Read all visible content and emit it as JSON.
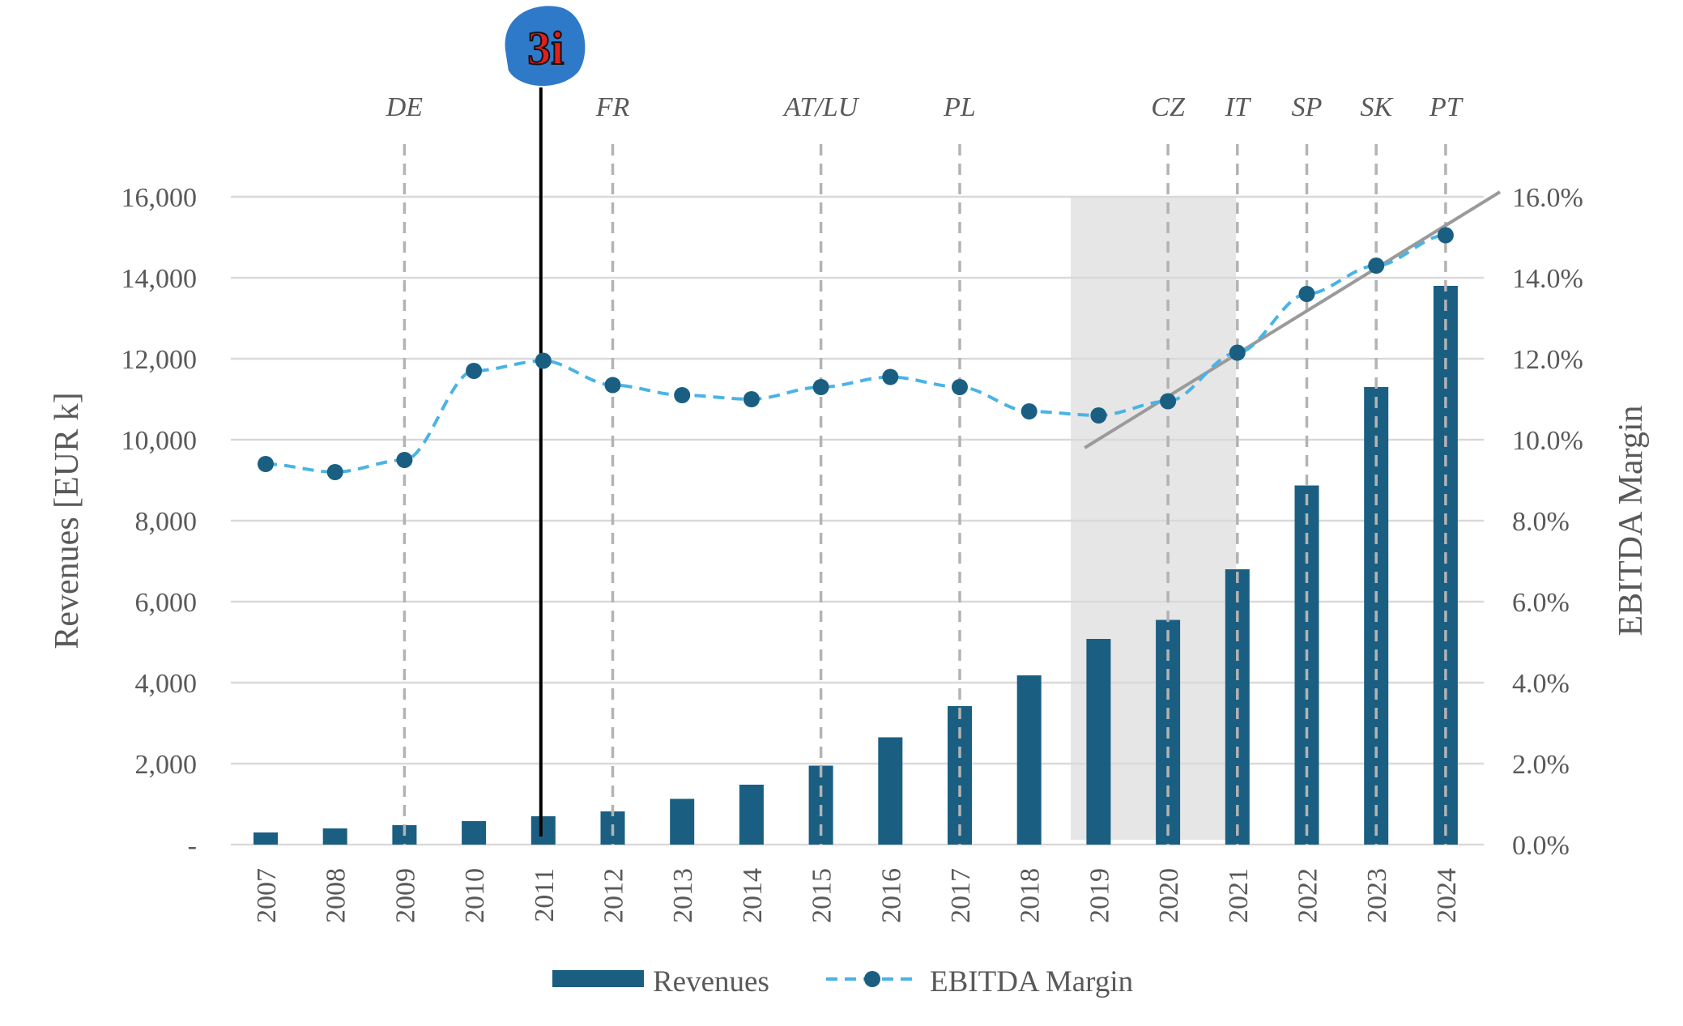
{
  "chart_data": {
    "type": "bar",
    "title": "",
    "categories": [
      "2007",
      "2008",
      "2009",
      "2010",
      "2011",
      "2012",
      "2013",
      "2014",
      "2015",
      "2016",
      "2017",
      "2018",
      "2019",
      "2020",
      "2021",
      "2022",
      "2023",
      "2024"
    ],
    "series": [
      {
        "name": "Revenues",
        "axis": "left",
        "kind": "bar",
        "values": [
          300,
          400,
          480,
          580,
          700,
          820,
          1130,
          1480,
          1950,
          2650,
          3420,
          4180,
          5080,
          5550,
          6800,
          8870,
          11300,
          13800
        ]
      },
      {
        "name": "EBITDA Margin",
        "axis": "right",
        "kind": "line-dashed-markers",
        "values": [
          9.4,
          9.2,
          9.5,
          11.7,
          11.95,
          11.35,
          11.1,
          11.0,
          11.3,
          11.55,
          11.3,
          10.7,
          10.6,
          10.95,
          12.15,
          13.6,
          14.3,
          15.05
        ]
      }
    ],
    "ylabel": "Revenues [EUR k]",
    "y2label": "EBITDA Margin",
    "ylim": [
      0,
      16000
    ],
    "y2lim": [
      0,
      16
    ],
    "yticks": [
      "-",
      "2,000",
      "4,000",
      "6,000",
      "8,000",
      "10,000",
      "12,000",
      "14,000",
      "16,000"
    ],
    "y2ticks": [
      "0.0%",
      "2.0%",
      "4.0%",
      "6.0%",
      "8.0%",
      "10.0%",
      "12.0%",
      "14.0%",
      "16.0%"
    ],
    "grid": true,
    "legend": {
      "position": "bottom",
      "entries": [
        "Revenues",
        "EBITDA Margin"
      ]
    },
    "country_markers": [
      {
        "year": "2009",
        "label": "DE"
      },
      {
        "year": "2012",
        "label": "FR"
      },
      {
        "year": "2015",
        "label": "AT/LU"
      },
      {
        "year": "2017",
        "label": "PL"
      },
      {
        "year": "2020",
        "label": "CZ"
      },
      {
        "year": "2021",
        "label": "IT"
      },
      {
        "year": "2022",
        "label": "SP"
      },
      {
        "year": "2023",
        "label": "SK"
      },
      {
        "year": "2024",
        "label": "PT"
      }
    ],
    "investor_marker": {
      "year": "2011",
      "logo_text": "3i"
    },
    "shaded_period": {
      "from": "2019",
      "to": "2021"
    },
    "trend_line": {
      "from_year": "2019",
      "from_value": 9.8,
      "to_year": "2024",
      "to_value": 16.0
    }
  },
  "colors": {
    "bar": "#1a5f82",
    "line": "#4ab3e6",
    "marker": "#1a5f82",
    "grid": "#d9d9d9",
    "shade": "#e6e6e6",
    "trend": "#9a9a9a",
    "country_line": "#b3b3b3",
    "investor_line": "#000000",
    "logo_bg": "#2f79c9"
  }
}
